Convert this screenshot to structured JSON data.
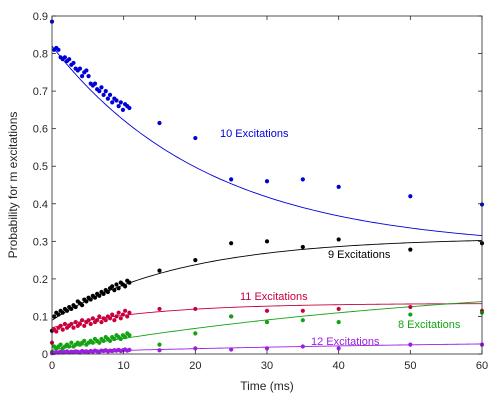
{
  "chart_data": {
    "type": "scatter",
    "title": "",
    "xlabel": "Time (ms)",
    "ylabel": "Probability for m excitations",
    "xlim": [
      0,
      60
    ],
    "ylim": [
      0,
      0.9
    ],
    "xticks": [
      "0",
      "10",
      "20",
      "30",
      "40",
      "50",
      "60"
    ],
    "yticks": [
      "0",
      "0.1",
      "0.2",
      "0.3",
      "0.4",
      "0.5",
      "0.6",
      "0.7",
      "0.8",
      "0.9"
    ],
    "grid": false,
    "legend": "none",
    "series": [
      {
        "name": "10 Excitations",
        "color": "#0000d8",
        "x": [
          0,
          0.3,
          0.6,
          0.9,
          1.2,
          1.5,
          1.8,
          2.1,
          2.4,
          2.7,
          3,
          3.3,
          3.6,
          3.9,
          4.2,
          4.5,
          4.8,
          5.1,
          5.4,
          5.7,
          6,
          6.3,
          6.6,
          6.9,
          7.2,
          7.5,
          7.8,
          8.1,
          8.4,
          8.7,
          9,
          9.3,
          9.6,
          9.9,
          10.2,
          10.5,
          10.8,
          15,
          20,
          25,
          30,
          35,
          40,
          50,
          60
        ],
        "y": [
          0.885,
          0.81,
          0.815,
          0.81,
          0.79,
          0.785,
          0.79,
          0.78,
          0.785,
          0.77,
          0.775,
          0.76,
          0.755,
          0.76,
          0.74,
          0.75,
          0.755,
          0.74,
          0.72,
          0.715,
          0.72,
          0.705,
          0.7,
          0.71,
          0.69,
          0.7,
          0.68,
          0.69,
          0.67,
          0.68,
          0.675,
          0.66,
          0.67,
          0.65,
          0.665,
          0.66,
          0.655,
          0.615,
          0.575,
          0.465,
          0.46,
          0.465,
          0.445,
          0.42,
          0.398
        ],
        "fit": {
          "a": 0.82,
          "b": 0.28,
          "tau": 22
        }
      },
      {
        "name": "9 Excitations",
        "color": "#000000",
        "x": [
          0,
          0.3,
          0.6,
          0.9,
          1.2,
          1.5,
          1.8,
          2.1,
          2.4,
          2.7,
          3,
          3.3,
          3.6,
          3.9,
          4.2,
          4.5,
          4.8,
          5.1,
          5.4,
          5.7,
          6,
          6.3,
          6.6,
          6.9,
          7.2,
          7.5,
          7.8,
          8.1,
          8.4,
          8.7,
          9,
          9.3,
          9.6,
          9.9,
          10.2,
          10.5,
          10.8,
          15,
          20,
          25,
          30,
          35,
          40,
          50,
          60
        ],
        "y": [
          0.062,
          0.1,
          0.11,
          0.105,
          0.115,
          0.11,
          0.12,
          0.115,
          0.125,
          0.12,
          0.13,
          0.125,
          0.14,
          0.135,
          0.13,
          0.145,
          0.14,
          0.15,
          0.145,
          0.155,
          0.15,
          0.16,
          0.155,
          0.165,
          0.16,
          0.17,
          0.165,
          0.175,
          0.18,
          0.17,
          0.185,
          0.175,
          0.19,
          0.185,
          0.18,
          0.195,
          0.19,
          0.222,
          0.25,
          0.295,
          0.3,
          0.285,
          0.305,
          0.278,
          0.295
        ],
        "fit": {
          "a": 0.09,
          "b": 0.31,
          "tau": 18
        }
      },
      {
        "name": "11 Excitations",
        "color": "#c8003c",
        "x": [
          0,
          0.3,
          0.6,
          0.9,
          1.2,
          1.5,
          1.8,
          2.1,
          2.4,
          2.7,
          3,
          3.3,
          3.6,
          3.9,
          4.2,
          4.5,
          4.8,
          5.1,
          5.4,
          5.7,
          6,
          6.3,
          6.6,
          6.9,
          7.2,
          7.5,
          7.8,
          8.1,
          8.4,
          8.7,
          9,
          9.3,
          9.6,
          9.9,
          10.2,
          10.5,
          10.8,
          15,
          20,
          25,
          30,
          35,
          40,
          50,
          60
        ],
        "y": [
          0.03,
          0.065,
          0.06,
          0.07,
          0.075,
          0.065,
          0.08,
          0.07,
          0.075,
          0.08,
          0.07,
          0.085,
          0.075,
          0.08,
          0.09,
          0.075,
          0.085,
          0.09,
          0.08,
          0.095,
          0.085,
          0.09,
          0.1,
          0.085,
          0.095,
          0.09,
          0.1,
          0.095,
          0.105,
          0.09,
          0.1,
          0.11,
          0.095,
          0.105,
          0.115,
          0.1,
          0.11,
          0.12,
          0.12,
          0.1,
          0.115,
          0.115,
          0.12,
          0.125,
          0.115
        ],
        "fit": {
          "a": 0.07,
          "b": 0.135,
          "tau": 14
        }
      },
      {
        "name": "8 Excitations",
        "color": "#12a312",
        "x": [
          0,
          0.3,
          0.6,
          0.9,
          1.2,
          1.5,
          1.8,
          2.1,
          2.4,
          2.7,
          3,
          3.3,
          3.6,
          3.9,
          4.2,
          4.5,
          4.8,
          5.1,
          5.4,
          5.7,
          6,
          6.3,
          6.6,
          6.9,
          7.2,
          7.5,
          7.8,
          8.1,
          8.4,
          8.7,
          9,
          9.3,
          9.6,
          9.9,
          10.2,
          10.5,
          10.8,
          15,
          20,
          25,
          30,
          35,
          40,
          50,
          60
        ],
        "y": [
          0.005,
          0.02,
          0.015,
          0.02,
          0.025,
          0.015,
          0.02,
          0.025,
          0.02,
          0.03,
          0.02,
          0.025,
          0.03,
          0.025,
          0.03,
          0.035,
          0.025,
          0.03,
          0.035,
          0.03,
          0.04,
          0.035,
          0.03,
          0.04,
          0.035,
          0.045,
          0.04,
          0.035,
          0.045,
          0.04,
          0.05,
          0.045,
          0.04,
          0.05,
          0.045,
          0.055,
          0.05,
          0.025,
          0.055,
          0.1,
          0.085,
          0.09,
          0.085,
          0.105,
          0.11
        ],
        "fit": {
          "a": 0.01,
          "b": 0.215,
          "tau": 60
        }
      },
      {
        "name": "12 Excitations",
        "color": "#9b1fe0",
        "x": [
          0,
          0.3,
          0.6,
          0.9,
          1.2,
          1.5,
          1.8,
          2.1,
          2.4,
          2.7,
          3,
          3.3,
          3.6,
          3.9,
          4.2,
          4.5,
          4.8,
          5.1,
          5.4,
          5.7,
          6,
          6.3,
          6.6,
          6.9,
          7.2,
          7.5,
          7.8,
          8.1,
          8.4,
          8.7,
          9,
          9.3,
          9.6,
          9.9,
          10.2,
          10.5,
          10.8,
          15,
          20,
          25,
          30,
          35,
          40,
          50,
          60
        ],
        "y": [
          0.002,
          0.003,
          0.005,
          0.004,
          0.006,
          0.004,
          0.005,
          0.007,
          0.004,
          0.006,
          0.005,
          0.007,
          0.006,
          0.004,
          0.008,
          0.006,
          0.007,
          0.005,
          0.008,
          0.006,
          0.009,
          0.007,
          0.006,
          0.009,
          0.008,
          0.01,
          0.007,
          0.009,
          0.008,
          0.01,
          0.009,
          0.011,
          0.008,
          0.01,
          0.012,
          0.009,
          0.011,
          0.01,
          0.015,
          0.012,
          0.015,
          0.02,
          0.015,
          0.025,
          0.025
        ],
        "fit": {
          "a": 0.004,
          "b": 0.04,
          "tau": 60
        }
      }
    ]
  }
}
